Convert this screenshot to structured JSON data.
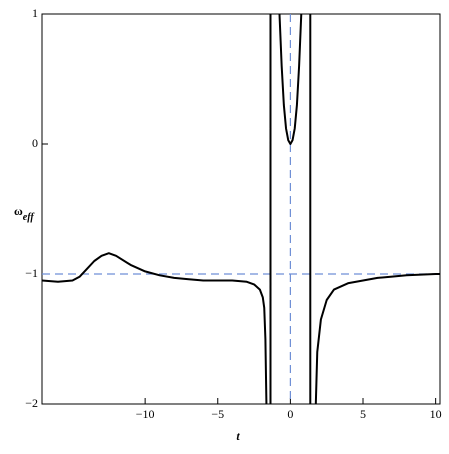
{
  "chart_data": {
    "type": "line",
    "x_label": "t",
    "y_label": {
      "symbol": "ω",
      "subscript": "eff"
    },
    "x": [
      -17.1,
      -16,
      -15,
      -14.5,
      -14,
      -13.5,
      -13,
      -12.5,
      -12,
      -11,
      -10,
      -9,
      -8,
      -7,
      -6,
      -5,
      -4,
      -3,
      -2.5,
      -2.1,
      -1.9,
      -1.8,
      -1.72,
      -1.65,
      null,
      -1.37,
      -1.37,
      null,
      -0.75,
      -0.6,
      -0.45,
      -0.3,
      -0.15,
      0,
      0.15,
      0.3,
      0.45,
      0.6,
      0.75,
      null,
      1.37,
      1.37,
      null,
      1.75,
      1.85,
      2.1,
      2.5,
      3,
      4,
      5,
      6,
      7,
      8,
      9,
      10,
      10.3
    ],
    "series": [
      {
        "color": "#000000",
        "values": [
          -1.05,
          -1.06,
          -1.05,
          -1.02,
          -0.96,
          -0.9,
          -0.86,
          -0.84,
          -0.86,
          -0.93,
          -0.98,
          -1.01,
          -1.03,
          -1.04,
          -1.05,
          -1.05,
          -1.05,
          -1.06,
          -1.08,
          -1.12,
          -1.18,
          -1.26,
          -1.5,
          -2,
          null,
          -2,
          1,
          null,
          1,
          0.6,
          0.3,
          0.12,
          0.03,
          0,
          0.03,
          0.12,
          0.3,
          0.6,
          1,
          null,
          1,
          -2,
          null,
          -2,
          -1.6,
          -1.35,
          -1.2,
          -1.12,
          -1.07,
          -1.05,
          -1.03,
          -1.02,
          -1.01,
          -1.005,
          -1.0,
          -1.0
        ]
      }
    ],
    "xlim": [
      -17.1,
      10.3
    ],
    "ylim": [
      -2,
      1
    ],
    "xticks": [
      {
        "value": -10,
        "label": "−10"
      },
      {
        "value": -5,
        "label": "−5"
      },
      0,
      5,
      10
    ],
    "yticks": [
      {
        "value": -2,
        "label": "−2"
      },
      {
        "value": -1,
        "label": "−1"
      },
      0,
      1
    ],
    "reference_lines": {
      "y": -1,
      "x": 0,
      "color": "#6f8fd6"
    }
  }
}
